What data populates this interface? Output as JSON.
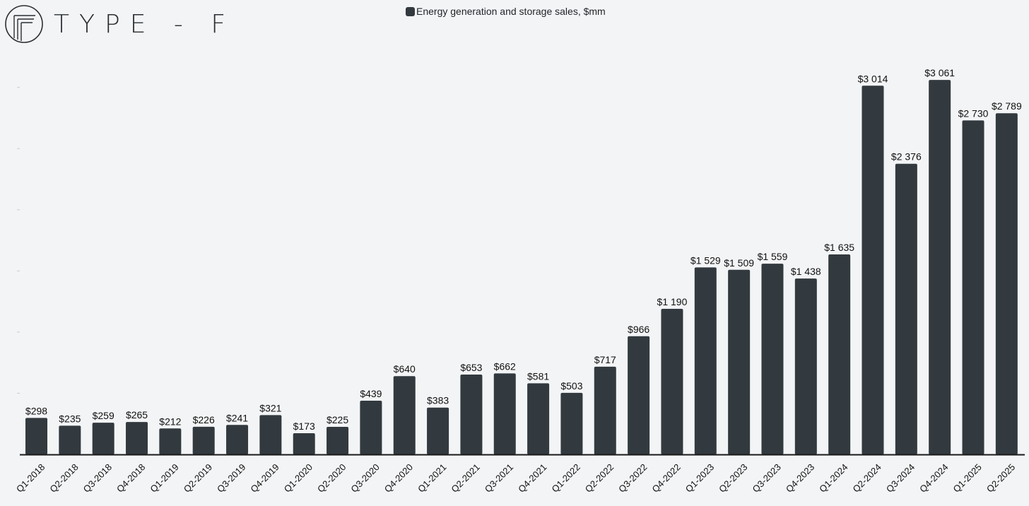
{
  "brand": {
    "name": "TYPE-F",
    "logo_text": "TYPE - F"
  },
  "colors": {
    "bar": "#323a3f",
    "background": "#f3f4f6",
    "axis": "#1a1a1a"
  },
  "chart_data": {
    "type": "bar",
    "title": "",
    "xlabel": "",
    "ylabel": "",
    "legend": {
      "position": "top-center",
      "entries": [
        "Energy generation and storage sales, $mm"
      ]
    },
    "series": [
      {
        "name": "Energy generation and storage sales, $mm",
        "values": [
          298,
          235,
          259,
          265,
          212,
          226,
          241,
          321,
          173,
          225,
          439,
          640,
          383,
          653,
          662,
          581,
          503,
          717,
          966,
          1190,
          1529,
          1509,
          1559,
          1438,
          1635,
          3014,
          2376,
          3061,
          2730,
          2789
        ]
      }
    ],
    "categories": [
      "Q1-2018",
      "Q2-2018",
      "Q3-2018",
      "Q4-2018",
      "Q1-2019",
      "Q2-2019",
      "Q3-2019",
      "Q4-2019",
      "Q1-2020",
      "Q2-2020",
      "Q3-2020",
      "Q4-2020",
      "Q1-2021",
      "Q2-2021",
      "Q3-2021",
      "Q4-2021",
      "Q1-2022",
      "Q2-2022",
      "Q3-2022",
      "Q4-2022",
      "Q1-2023",
      "Q2-2023",
      "Q3-2023",
      "Q4-2023",
      "Q1-2024",
      "Q2-2024",
      "Q3-2024",
      "Q4-2024",
      "Q1-2025",
      "Q2-2025"
    ],
    "data_labels": [
      "$298",
      "$235",
      "$259",
      "$265",
      "$212",
      "$226",
      "$241",
      "$321",
      "$173",
      "$225",
      "$439",
      "$640",
      "$383",
      "$653",
      "$662",
      "$581",
      "$503",
      "$717",
      "$966",
      "$1 190",
      "$1 529",
      "$1 509",
      "$1 559",
      "$1 438",
      "$1 635",
      "$3 014",
      "$2 376",
      "$3 061",
      "$2 730",
      "$2 789"
    ],
    "ylim": [
      0,
      3000
    ],
    "grid": false
  }
}
